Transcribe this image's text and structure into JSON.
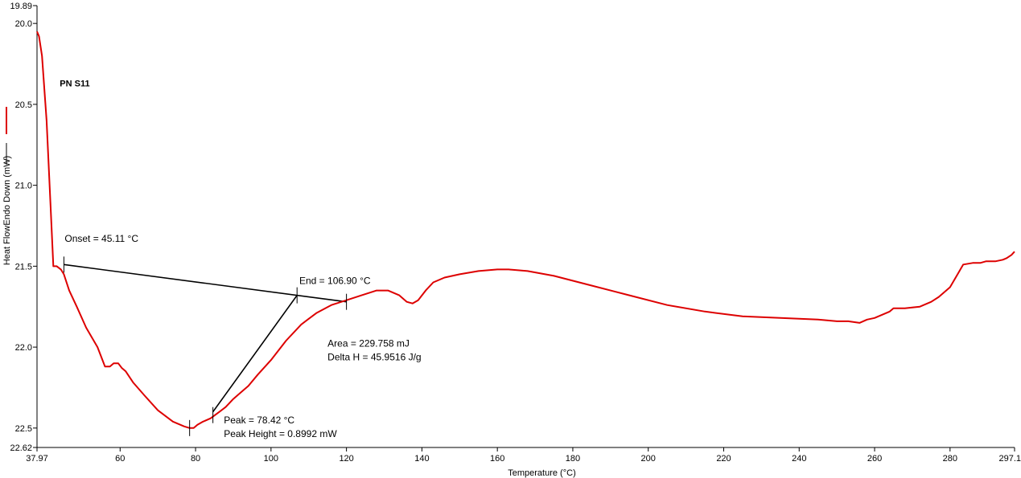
{
  "chart_data": {
    "type": "line",
    "title": "",
    "xlabel": "Temperature (°C)",
    "ylabel": "Heat FlowEndo Down (mW)",
    "xlim": [
      37.97,
      297.1
    ],
    "ylim": [
      19.89,
      22.62
    ],
    "y_inverted": true,
    "x_ticks": [
      {
        "value": 37.97,
        "label": "37.97"
      },
      {
        "value": 60,
        "label": "60"
      },
      {
        "value": 80,
        "label": "80"
      },
      {
        "value": 100,
        "label": "100"
      },
      {
        "value": 120,
        "label": "120"
      },
      {
        "value": 140,
        "label": "140"
      },
      {
        "value": 160,
        "label": "160"
      },
      {
        "value": 180,
        "label": "180"
      },
      {
        "value": 200,
        "label": "200"
      },
      {
        "value": 220,
        "label": "220"
      },
      {
        "value": 240,
        "label": "240"
      },
      {
        "value": 260,
        "label": "260"
      },
      {
        "value": 280,
        "label": "280"
      },
      {
        "value": 297.1,
        "label": "297.1"
      }
    ],
    "y_ticks": [
      {
        "value": 19.89,
        "label": "19.89"
      },
      {
        "value": 20.0,
        "label": "20.0"
      },
      {
        "value": 20.5,
        "label": "20.5"
      },
      {
        "value": 21.0,
        "label": "21.0"
      },
      {
        "value": 21.5,
        "label": "21.5"
      },
      {
        "value": 22.0,
        "label": "22.0"
      },
      {
        "value": 22.5,
        "label": "22.5"
      },
      {
        "value": 22.62,
        "label": "22.62"
      }
    ],
    "series": [
      {
        "name": "PN S11",
        "color": "#dd0000",
        "x": [
          37.97,
          38.5,
          39.3,
          40.5,
          41.5,
          42.3,
          43.2,
          44.3,
          45.1,
          46.5,
          48.5,
          51,
          54,
          56,
          57.3,
          58.3,
          59.5,
          60.5,
          61.5,
          63.5,
          66.5,
          70,
          74,
          77,
          78.42,
          79.5,
          80.5,
          82,
          84,
          86.3,
          88,
          90,
          92,
          94,
          96.5,
          100,
          104,
          108,
          112,
          116,
          120,
          124,
          128,
          131,
          134,
          136,
          137.5,
          139,
          141,
          143,
          146,
          150,
          155,
          160,
          163,
          168,
          175,
          185,
          195,
          205,
          215,
          225,
          235,
          245,
          250,
          253,
          256,
          258,
          260,
          262,
          264,
          265,
          268,
          272,
          273,
          275,
          277,
          280,
          282,
          283.5,
          286,
          288,
          289.5,
          291,
          292,
          294,
          295,
          296.3,
          297.1
        ],
        "y": [
          20.05,
          20.08,
          20.2,
          20.6,
          21.1,
          21.5,
          21.5,
          21.52,
          21.55,
          21.65,
          21.75,
          21.88,
          22.0,
          22.12,
          22.12,
          22.1,
          22.1,
          22.13,
          22.15,
          22.22,
          22.3,
          22.39,
          22.46,
          22.49,
          22.5,
          22.5,
          22.48,
          22.46,
          22.44,
          22.4,
          22.37,
          22.32,
          22.28,
          22.24,
          22.17,
          22.08,
          21.96,
          21.86,
          21.79,
          21.74,
          21.71,
          21.68,
          21.65,
          21.65,
          21.68,
          21.72,
          21.73,
          21.71,
          21.65,
          21.6,
          21.57,
          21.55,
          21.53,
          21.52,
          21.52,
          21.53,
          21.56,
          21.62,
          21.68,
          21.74,
          21.78,
          21.81,
          21.82,
          21.83,
          21.84,
          21.84,
          21.85,
          21.83,
          21.82,
          21.8,
          21.78,
          21.76,
          21.76,
          21.75,
          21.74,
          21.72,
          21.69,
          21.63,
          21.55,
          21.49,
          21.48,
          21.48,
          21.47,
          21.47,
          21.47,
          21.46,
          21.45,
          21.43,
          21.41
        ]
      }
    ],
    "baseline": {
      "color": "#000000",
      "x": [
        45.1,
        120.0
      ],
      "y": [
        21.49,
        21.72
      ]
    },
    "tangent": {
      "color": "#000000",
      "x": [
        84.6,
        106.9
      ],
      "y": [
        22.4,
        21.68
      ]
    },
    "markers": [
      {
        "x": 45.1,
        "y": 21.49
      },
      {
        "x": 106.9,
        "y": 21.68
      },
      {
        "x": 120.0,
        "y": 21.72
      },
      {
        "x": 78.42,
        "y": 22.5
      },
      {
        "x": 84.6,
        "y": 22.42
      }
    ],
    "annotations": [
      {
        "id": "onset",
        "lines": [
          "Onset = 45.11 °C"
        ],
        "x": 45.3,
        "y": 21.35
      },
      {
        "id": "end",
        "lines": [
          "End = 106.90 °C"
        ],
        "x": 107.5,
        "y": 21.61
      },
      {
        "id": "area",
        "lines": [
          "Area = 229.758 mJ",
          "Delta H = 45.9516 J/g"
        ],
        "x": 115.0,
        "y": 21.996
      },
      {
        "id": "peak",
        "lines": [
          "Peak = 78.42 °C",
          "Peak Height = 0.8992 mW"
        ],
        "x": 87.5,
        "y": 22.47
      }
    ],
    "series_label": {
      "text": "PN S11",
      "x": 44.0,
      "y": 20.39
    },
    "legend": {
      "position": "left-axis",
      "color": "#dd0000"
    }
  }
}
